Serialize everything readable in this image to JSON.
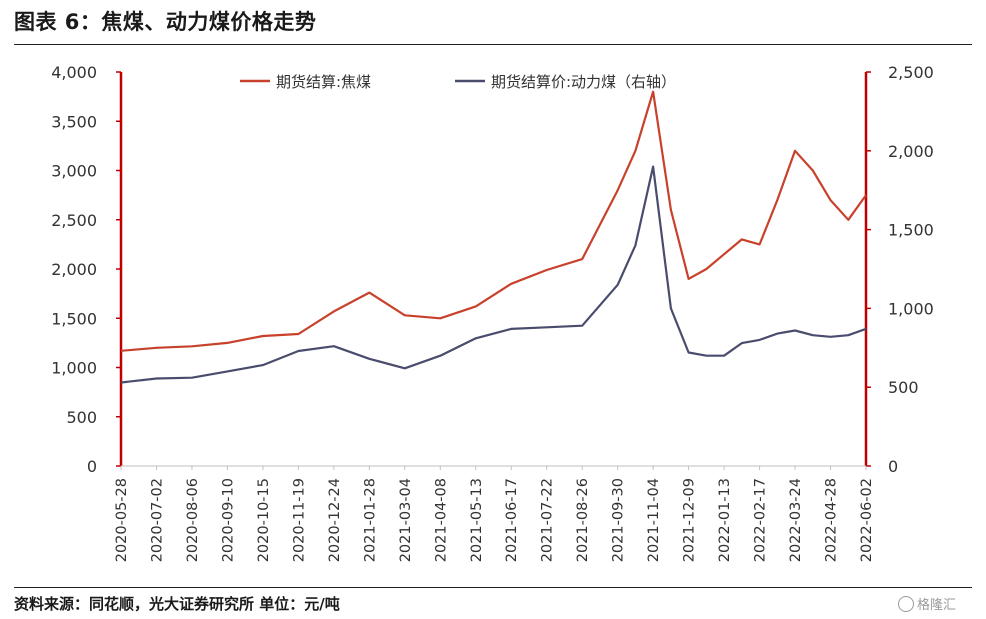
{
  "header": {
    "title": "图表 6：焦煤、动力煤价格走势"
  },
  "footer": {
    "source": "资料来源：同花顺，光大证券研究所  单位：元/吨",
    "watermark": "格隆汇"
  },
  "chart_data": {
    "type": "line",
    "title": "",
    "colors": {
      "coking": "#c8412b",
      "thermal": "#4a4c6e",
      "axis": "#c00000"
    },
    "legend_position": "top",
    "x_tick_labels": [
      "2020-05-28",
      "2020-07-02",
      "2020-08-06",
      "2020-09-10",
      "2020-10-15",
      "2020-11-19",
      "2020-12-24",
      "2021-01-28",
      "2021-03-04",
      "2021-04-08",
      "2021-05-13",
      "2021-06-17",
      "2021-07-22",
      "2021-08-26",
      "2021-09-30",
      "2021-11-04",
      "2021-12-09",
      "2022-01-13",
      "2022-02-17",
      "2022-03-24",
      "2022-04-28",
      "2022-06-02"
    ],
    "y_left": {
      "ticks": [
        "0",
        "500",
        "1,000",
        "1,500",
        "2,000",
        "2,500",
        "3,000",
        "3,500",
        "4,000"
      ],
      "lim": [
        0,
        4000
      ]
    },
    "y_right": {
      "ticks": [
        "0",
        "500",
        "1,000",
        "1,500",
        "2,000",
        "2,500"
      ],
      "lim": [
        0,
        2500
      ]
    },
    "series": [
      {
        "name": "期货结算:焦煤",
        "axis": "left",
        "x": [
          0,
          1,
          2,
          3,
          4,
          5,
          6,
          7,
          8,
          9,
          10,
          11,
          12,
          13,
          14,
          14.5,
          15,
          15.5,
          16,
          16.5,
          17,
          17.5,
          18,
          18.5,
          19,
          19.5,
          20,
          20.5,
          21
        ],
        "values": [
          1170,
          1200,
          1215,
          1250,
          1320,
          1340,
          1570,
          1760,
          1530,
          1500,
          1620,
          1850,
          1990,
          2100,
          2800,
          3200,
          3800,
          2600,
          1900,
          2000,
          2150,
          2300,
          2250,
          2700,
          3200,
          3000,
          2700,
          2500,
          2750
        ]
      },
      {
        "name": "期货结算价:动力煤（右轴）",
        "axis": "right",
        "x": [
          0,
          1,
          2,
          3,
          4,
          5,
          6,
          7,
          8,
          9,
          10,
          11,
          12,
          13,
          14,
          14.5,
          15,
          15.5,
          16,
          16.5,
          17,
          17.5,
          18,
          18.5,
          19,
          19.5,
          20,
          20.5,
          21
        ],
        "values": [
          530,
          555,
          560,
          600,
          640,
          730,
          760,
          680,
          620,
          700,
          810,
          870,
          880,
          890,
          1150,
          1400,
          1900,
          1000,
          720,
          700,
          700,
          780,
          800,
          840,
          860,
          830,
          820,
          830,
          870
        ]
      }
    ]
  }
}
